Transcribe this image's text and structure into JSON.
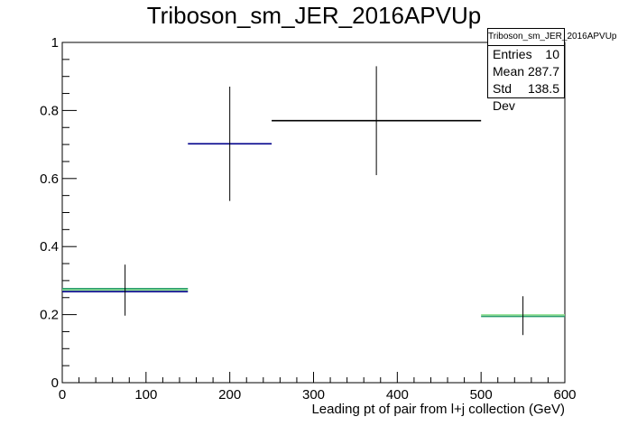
{
  "chart_data": {
    "type": "histogram",
    "title": "Triboson_sm_JER_2016APVUp",
    "xlabel": "Leading pt of pair from l+j collection (GeV)",
    "ylabel": "",
    "xlim": [
      0,
      600
    ],
    "ylim": [
      0,
      1
    ],
    "x_ticks": [
      0,
      100,
      200,
      300,
      400,
      500,
      600
    ],
    "y_ticks": [
      0,
      0.2,
      0.4,
      0.6,
      0.8,
      1
    ],
    "x_tick_labels": [
      "0",
      "100",
      "200",
      "300",
      "400",
      "500",
      "600"
    ],
    "y_tick_labels": [
      "0",
      "0.2",
      "0.4",
      "0.6",
      "0.8",
      "1"
    ],
    "bins": [
      {
        "x_low": 0,
        "x_high": 150,
        "value": 0.272,
        "error": 0.075,
        "colors": [
          "#2a9d6e",
          "#8fe08f",
          "#00008b"
        ]
      },
      {
        "x_low": 150,
        "x_high": 250,
        "value": 0.702,
        "error": 0.168,
        "colors": [
          "#00008b"
        ]
      },
      {
        "x_low": 250,
        "x_high": 500,
        "value": 0.77,
        "error": 0.16,
        "colors": [
          "#000000"
        ]
      },
      {
        "x_low": 500,
        "x_high": 600,
        "value": 0.197,
        "error": 0.057,
        "colors": [
          "#8fe08f",
          "#2a9d6e"
        ]
      }
    ]
  },
  "stats": {
    "title": "Triboson_sm_JER_2016APVUp",
    "rows": [
      {
        "label": "Entries",
        "value": "10"
      },
      {
        "label": "Mean",
        "value": "287.7"
      },
      {
        "label": "Std Dev",
        "value": "138.5"
      }
    ]
  }
}
